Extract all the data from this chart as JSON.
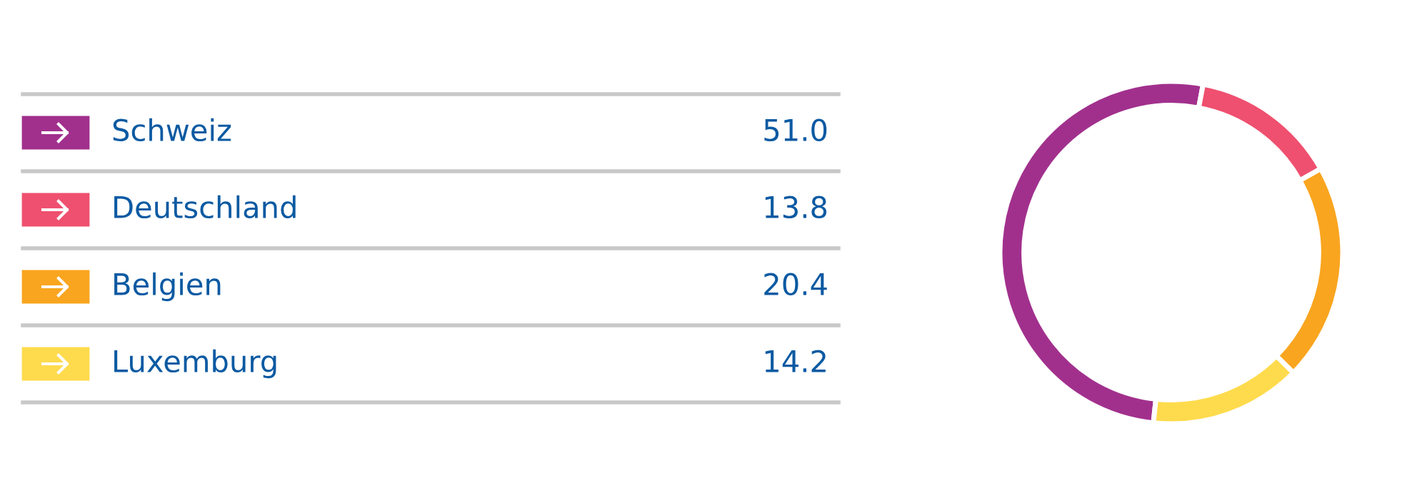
{
  "chart_data": {
    "type": "donut",
    "categories": [
      "Schweiz",
      "Deutschland",
      "Belgien",
      "Luxemburg"
    ],
    "values": [
      51.0,
      13.8,
      20.4,
      14.2
    ],
    "colors": [
      "#a1308d",
      "#ef506f",
      "#f9a51f",
      "#fedb4d"
    ],
    "value_labels": [
      "51.0",
      "13.8",
      "20.4",
      "14.2"
    ],
    "legend": "left"
  }
}
